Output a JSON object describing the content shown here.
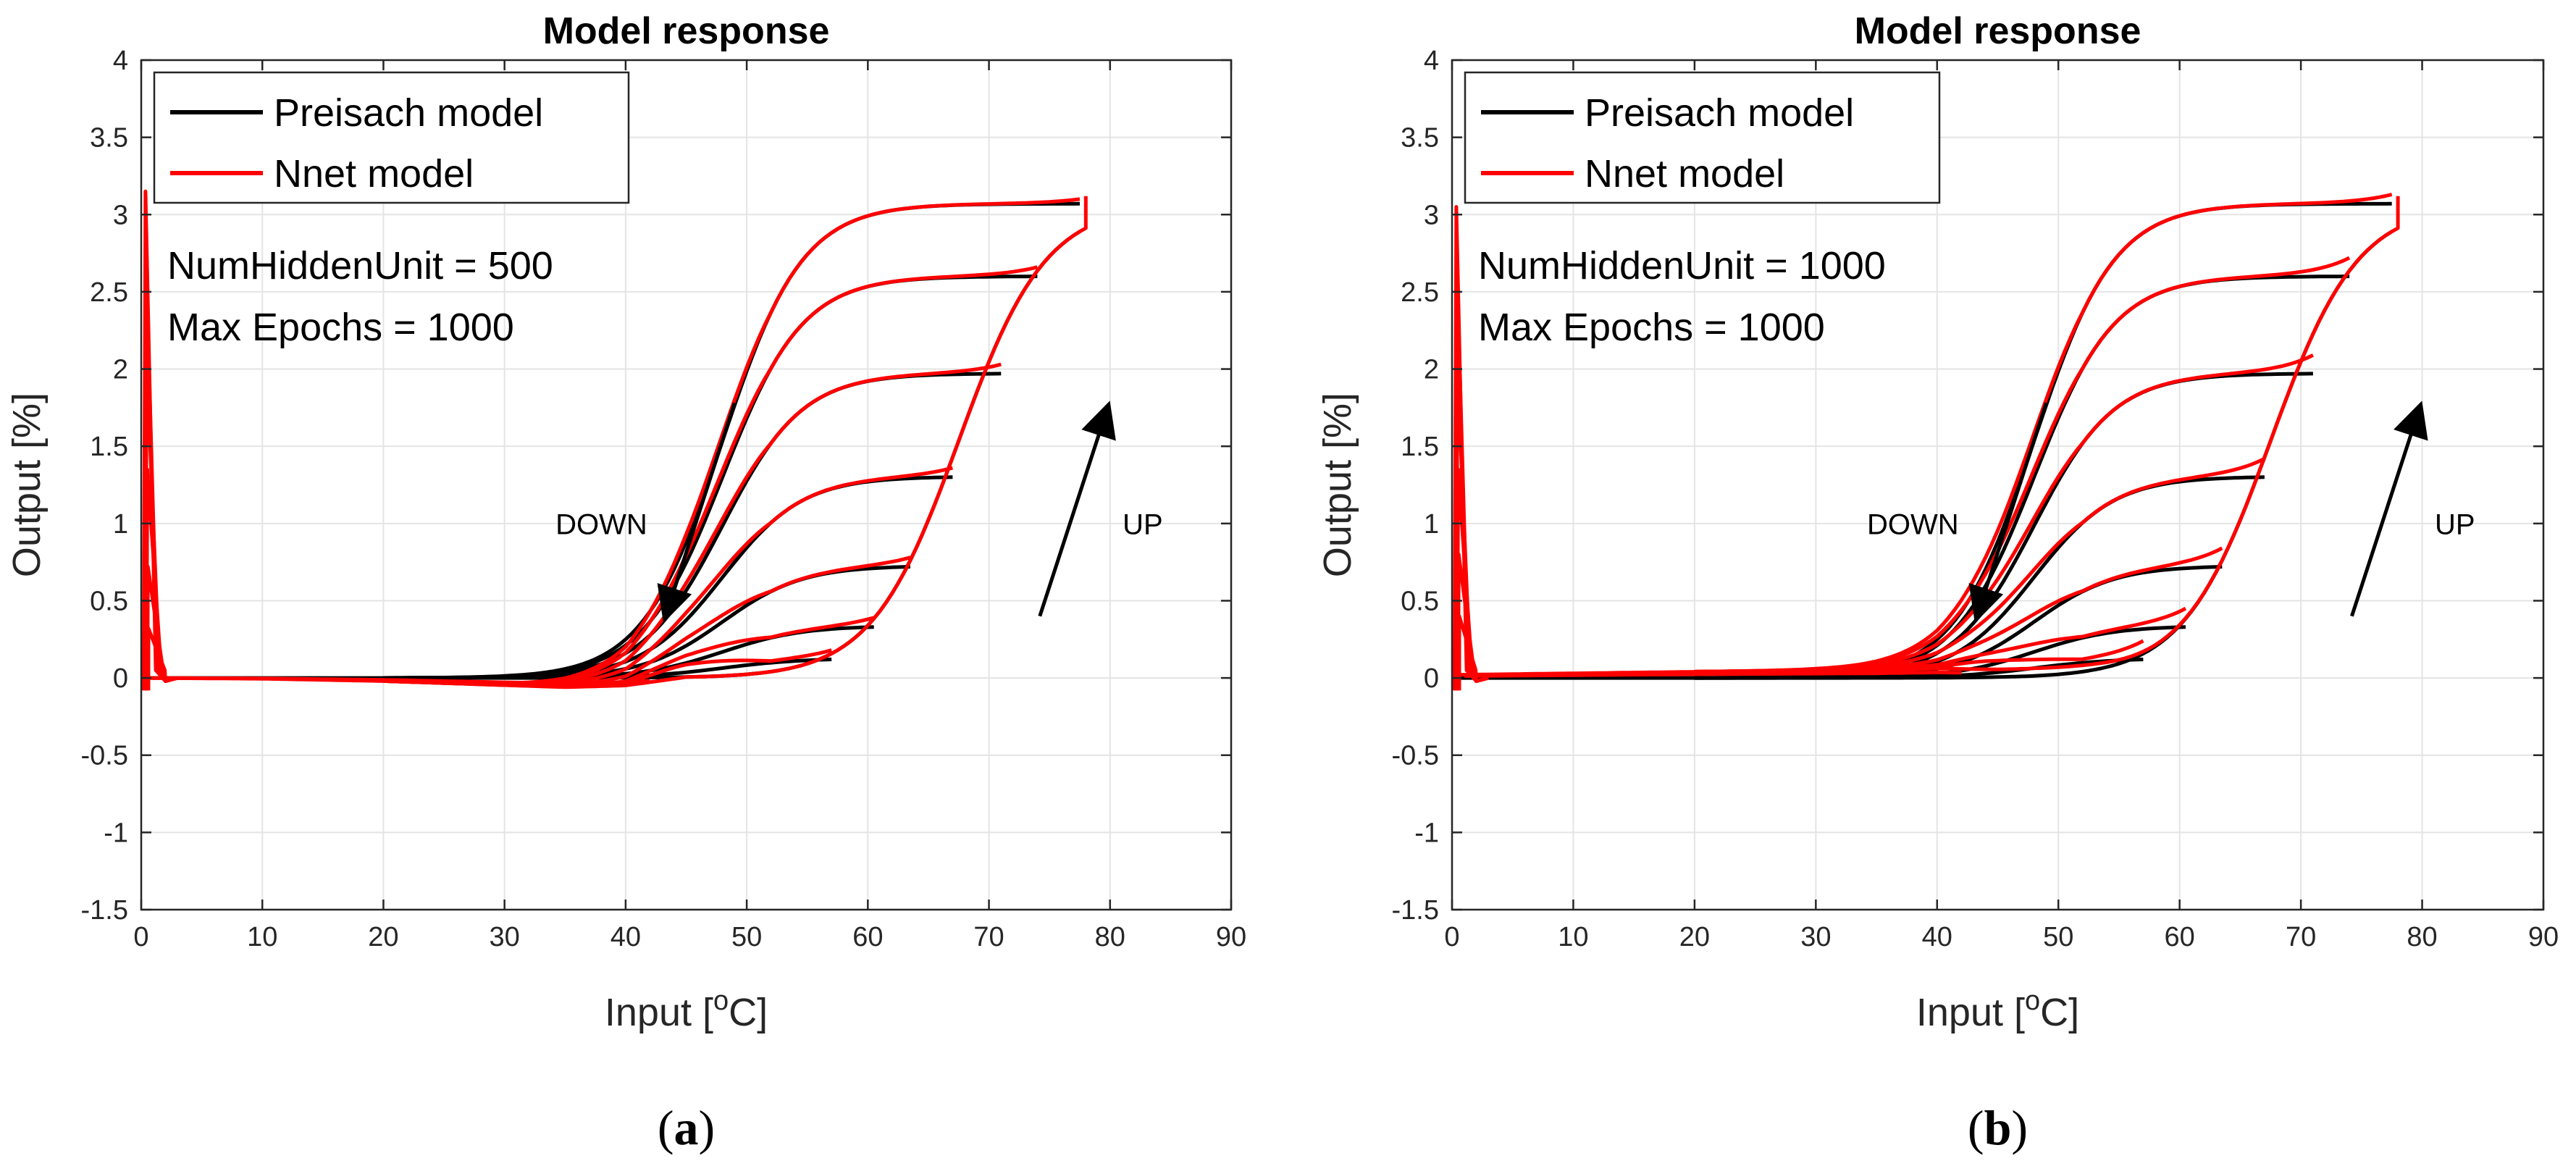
{
  "chart_data": [
    {
      "type": "line",
      "title": "Model response",
      "xlabel": "Input [",
      "xlabel_superscript": "o",
      "xlabel_suffix": "C]",
      "ylabel": "Output [%]",
      "xlim": [
        0,
        90
      ],
      "ylim": [
        -1.5,
        4
      ],
      "xticks": [
        "0",
        "10",
        "20",
        "30",
        "40",
        "50",
        "60",
        "70",
        "80",
        "90"
      ],
      "yticks": [
        "-1.5",
        "-1",
        "-0.5",
        "0",
        "0.5",
        "1",
        "1.5",
        "2",
        "2.5",
        "3",
        "3.5",
        "4"
      ],
      "grid": true,
      "legend_position": "top-left",
      "legend": [
        {
          "name": "Preisach model",
          "color": "#000000"
        },
        {
          "name": "Nnet model",
          "color": "#ff0000"
        }
      ],
      "annotations": [
        "NumHiddenUnit = 500",
        "Max Epochs = 1000"
      ],
      "arrow_labels": {
        "down": "DOWN",
        "up": "UP"
      },
      "caption": "(a)",
      "caption_letter": "a",
      "model": {
        "up_curve": {
          "mid": 67.5,
          "scale": 3.6,
          "max": 3.07
        },
        "turning_points": [
          {
            "x": 77.5,
            "y": 3.07
          },
          {
            "x": 74.0,
            "y": 2.6
          },
          {
            "x": 71.0,
            "y": 1.97
          },
          {
            "x": 67.0,
            "y": 1.3
          },
          {
            "x": 63.5,
            "y": 0.72
          },
          {
            "x": 60.5,
            "y": 0.33
          },
          {
            "x": 57.0,
            "y": 0.12
          }
        ],
        "down_mid": 48,
        "down_scale": 3.3,
        "nnet_spike_peaks": [
          3.15,
          2.68,
          2.05,
          1.35,
          0.72,
          0.32
        ],
        "nnet_offset": [
          {
            "x": 0,
            "y": 0
          },
          {
            "x": 10,
            "y": -0.005
          },
          {
            "x": 20,
            "y": -0.02
          },
          {
            "x": 35,
            "y": -0.06
          },
          {
            "x": 40,
            "y": -0.05
          },
          {
            "x": 45,
            "y": 0.0
          }
        ],
        "nnet_plateau_bump": 0.06
      }
    },
    {
      "type": "line",
      "title": "Model response",
      "xlabel": "Input [",
      "xlabel_superscript": "o",
      "xlabel_suffix": "C]",
      "ylabel": "Output [%]",
      "xlim": [
        0,
        90
      ],
      "ylim": [
        -1.5,
        4
      ],
      "xticks": [
        "0",
        "10",
        "20",
        "30",
        "40",
        "50",
        "60",
        "70",
        "80",
        "90"
      ],
      "yticks": [
        "-1.5",
        "-1",
        "-0.5",
        "0",
        "0.5",
        "1",
        "1.5",
        "2",
        "2.5",
        "3",
        "3.5",
        "4"
      ],
      "grid": true,
      "legend_position": "top-left",
      "legend": [
        {
          "name": "Preisach model",
          "color": "#000000"
        },
        {
          "name": "Nnet model",
          "color": "#ff0000"
        }
      ],
      "annotations": [
        "NumHiddenUnit = 1000",
        "Max Epochs = 1000"
      ],
      "arrow_labels": {
        "down": "DOWN",
        "up": "UP"
      },
      "caption": "(b)",
      "caption_letter": "b",
      "model": {
        "up_curve": {
          "mid": 67.5,
          "scale": 3.6,
          "max": 3.07
        },
        "turning_points": [
          {
            "x": 77.5,
            "y": 3.07
          },
          {
            "x": 74.0,
            "y": 2.6
          },
          {
            "x": 71.0,
            "y": 1.97
          },
          {
            "x": 67.0,
            "y": 1.3
          },
          {
            "x": 63.5,
            "y": 0.72
          },
          {
            "x": 60.5,
            "y": 0.33
          },
          {
            "x": 57.0,
            "y": 0.12
          }
        ],
        "down_mid": 48,
        "down_scale": 3.3,
        "nnet_spike_peaks": [
          3.05,
          2.65,
          2.0,
          1.35,
          0.8,
          0.4
        ],
        "nnet_offset": [
          {
            "x": 0,
            "y": 0.02
          },
          {
            "x": 10,
            "y": 0.03
          },
          {
            "x": 20,
            "y": 0.04
          },
          {
            "x": 35,
            "y": 0.05
          },
          {
            "x": 40,
            "y": 0.06
          },
          {
            "x": 45,
            "y": 0.05
          }
        ],
        "nnet_plateau_bump": 0.12
      }
    }
  ]
}
